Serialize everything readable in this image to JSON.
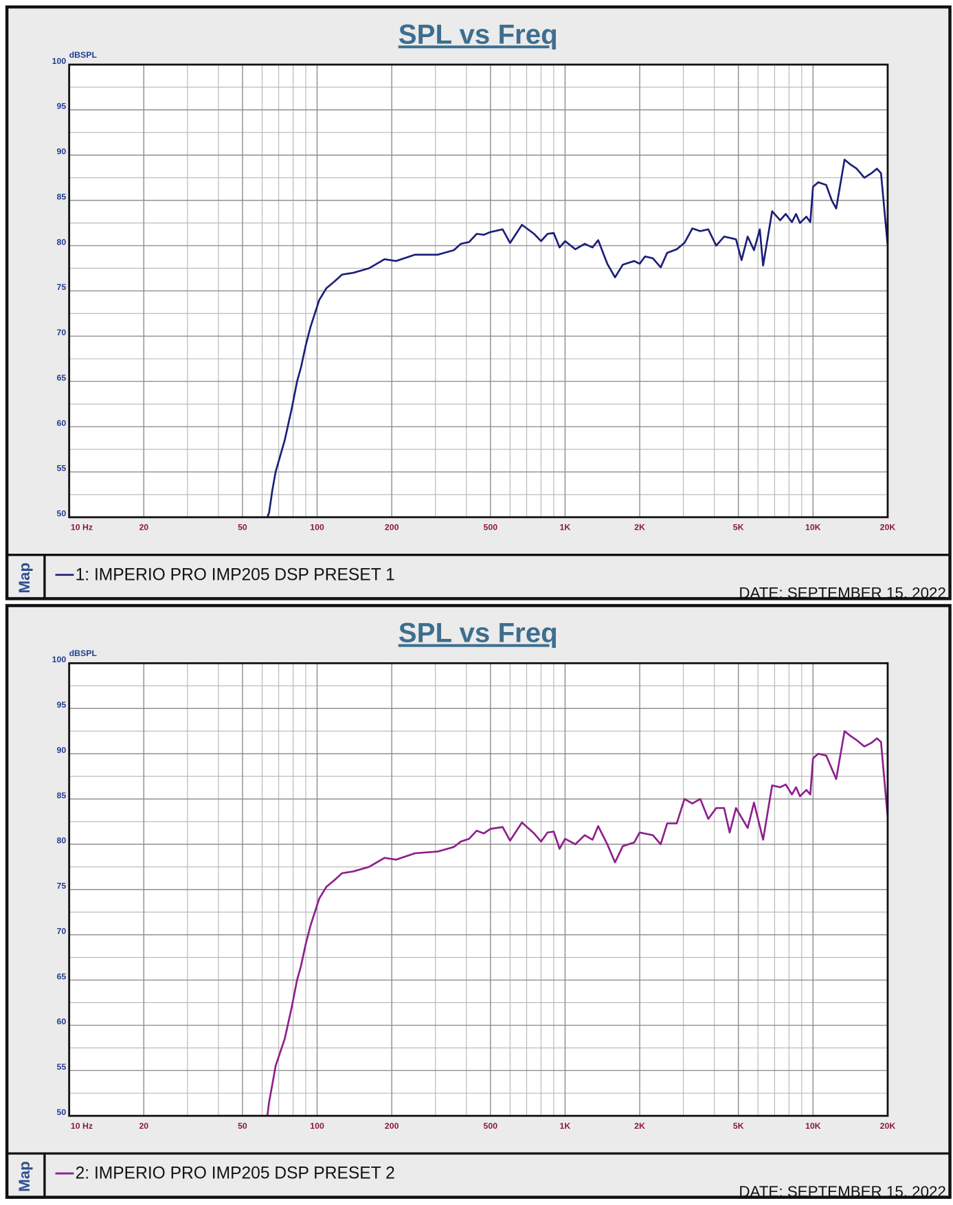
{
  "chart_data": [
    {
      "type": "line",
      "title": "SPL vs Freq",
      "y_label": "dBSPL",
      "legend_label": "Map",
      "date": "DATE: SEPTEMBER 15, 2022",
      "log_x": true,
      "grid": true,
      "xlim": [
        10,
        20000
      ],
      "ylim": [
        50,
        100
      ],
      "xticks": [
        {
          "value": 10,
          "label": "10 Hz"
        },
        20,
        50,
        100,
        200,
        500,
        {
          "value": 1000,
          "label": "1K"
        },
        {
          "value": 2000,
          "label": "2K"
        },
        {
          "value": 5000,
          "label": "5K"
        },
        {
          "value": 10000,
          "label": "10K"
        },
        {
          "value": 20000,
          "label": "20K"
        }
      ],
      "xminorticks": [
        30,
        40,
        60,
        70,
        80,
        90,
        300,
        400,
        600,
        700,
        800,
        900,
        3000,
        4000,
        6000,
        7000,
        8000,
        9000
      ],
      "yticks": [
        50,
        55,
        60,
        65,
        70,
        75,
        80,
        85,
        90,
        95,
        100
      ],
      "yminorticks": [
        52.5,
        57.5,
        62.5,
        67.5,
        72.5,
        77.5,
        82.5,
        87.5,
        92.5,
        97.5
      ],
      "x": [
        10,
        63,
        64,
        66,
        68,
        74,
        79,
        83,
        86,
        90,
        94,
        102,
        109,
        117,
        126,
        140,
        162,
        187,
        208,
        248,
        307,
        356,
        380,
        410,
        440,
        470,
        500,
        560,
        600,
        670,
        750,
        800,
        850,
        900,
        950,
        1000,
        1100,
        1200,
        1290,
        1360,
        1480,
        1590,
        1710,
        1900,
        2000,
        2100,
        2260,
        2430,
        2580,
        2820,
        3030,
        3260,
        3510,
        3780,
        4070,
        4380,
        4890,
        5150,
        5450,
        5780,
        6100,
        6290,
        6840,
        7370,
        7760,
        8220,
        8540,
        8860,
        9400,
        9750,
        10000,
        10500,
        11300,
        11900,
        12400,
        13400,
        14100,
        15000,
        16100,
        17200,
        18100,
        18800,
        20000
      ],
      "series": [
        {
          "name": "1: IMPERIO PRO IMP205 DSP PRESET 1",
          "color": "#1c1f78",
          "values": [
            50,
            50,
            50.5,
            53,
            55,
            58.5,
            62,
            65,
            66.5,
            69,
            71,
            74,
            75.3,
            76,
            76.8,
            77,
            77.5,
            78.5,
            78.3,
            79,
            79,
            79.5,
            80.2,
            80.4,
            81.3,
            81.2,
            81.5,
            81.8,
            80.3,
            82.3,
            81.3,
            80.5,
            81.3,
            81.4,
            79.8,
            80.5,
            79.6,
            80.2,
            79.8,
            80.6,
            78,
            76.5,
            77.9,
            78.3,
            78,
            78.8,
            78.6,
            77.6,
            79.2,
            79.6,
            80.3,
            81.9,
            81.6,
            81.8,
            80,
            81,
            80.7,
            78.4,
            81,
            79.5,
            81.8,
            77.8,
            83.8,
            82.8,
            83.5,
            82.6,
            83.5,
            82.5,
            83.2,
            82.6,
            86.5,
            87,
            86.7,
            85,
            84.1,
            89.5,
            89,
            88.5,
            87.5,
            88,
            88.5,
            88,
            80
          ]
        }
      ]
    },
    {
      "type": "line",
      "title": "SPL vs Freq",
      "y_label": "dBSPL",
      "legend_label": "Map",
      "date": "DATE: SEPTEMBER 15, 2022",
      "log_x": true,
      "grid": true,
      "xlim": [
        10,
        20000
      ],
      "ylim": [
        50,
        100
      ],
      "xticks": [
        {
          "value": 10,
          "label": "10 Hz"
        },
        20,
        50,
        100,
        200,
        500,
        {
          "value": 1000,
          "label": "1K"
        },
        {
          "value": 2000,
          "label": "2K"
        },
        {
          "value": 5000,
          "label": "5K"
        },
        {
          "value": 10000,
          "label": "10K"
        },
        {
          "value": 20000,
          "label": "20K"
        }
      ],
      "xminorticks": [
        30,
        40,
        60,
        70,
        80,
        90,
        300,
        400,
        600,
        700,
        800,
        900,
        3000,
        4000,
        6000,
        7000,
        8000,
        9000
      ],
      "yticks": [
        50,
        55,
        60,
        65,
        70,
        75,
        80,
        85,
        90,
        95,
        100
      ],
      "yminorticks": [
        52.5,
        57.5,
        62.5,
        67.5,
        72.5,
        77.5,
        82.5,
        87.5,
        92.5,
        97.5
      ],
      "x": [
        40,
        63,
        64,
        66,
        68,
        74,
        79,
        83,
        86,
        90,
        94,
        102,
        109,
        117,
        126,
        140,
        162,
        187,
        208,
        248,
        307,
        356,
        380,
        410,
        440,
        470,
        500,
        560,
        600,
        670,
        750,
        800,
        850,
        900,
        950,
        1000,
        1100,
        1200,
        1290,
        1360,
        1480,
        1590,
        1710,
        1900,
        2000,
        2260,
        2430,
        2580,
        2820,
        3030,
        3260,
        3510,
        3780,
        4070,
        4380,
        4610,
        4890,
        5450,
        5780,
        6290,
        6840,
        7370,
        7760,
        8220,
        8540,
        8860,
        9400,
        9750,
        10000,
        10500,
        11300,
        12400,
        13400,
        14100,
        15000,
        16100,
        17200,
        18100,
        18800,
        20000
      ],
      "series": [
        {
          "name": "2: IMPERIO PRO IMP205 DSP PRESET 2",
          "color": "#8e1f8e",
          "values": [
            50,
            50,
            51.5,
            53.5,
            55.5,
            58.5,
            62,
            65,
            66.5,
            69,
            71,
            74,
            75.3,
            76,
            76.8,
            77,
            77.5,
            78.5,
            78.3,
            79,
            79.2,
            79.7,
            80.3,
            80.6,
            81.5,
            81.2,
            81.7,
            81.9,
            80.4,
            82.4,
            81.2,
            80.3,
            81.3,
            81.4,
            79.5,
            80.6,
            80,
            81,
            80.5,
            82,
            80,
            78,
            79.8,
            80.2,
            81.3,
            81,
            80,
            82.3,
            82.3,
            85,
            84.5,
            85,
            82.8,
            84,
            84,
            81.3,
            84,
            81.8,
            84.6,
            80.5,
            86.5,
            86.3,
            86.6,
            85.5,
            86.3,
            85.3,
            86,
            85.5,
            89.5,
            90,
            89.8,
            87.2,
            92.5,
            92,
            91.5,
            90.8,
            91.2,
            91.7,
            91.3,
            83
          ]
        }
      ]
    }
  ]
}
